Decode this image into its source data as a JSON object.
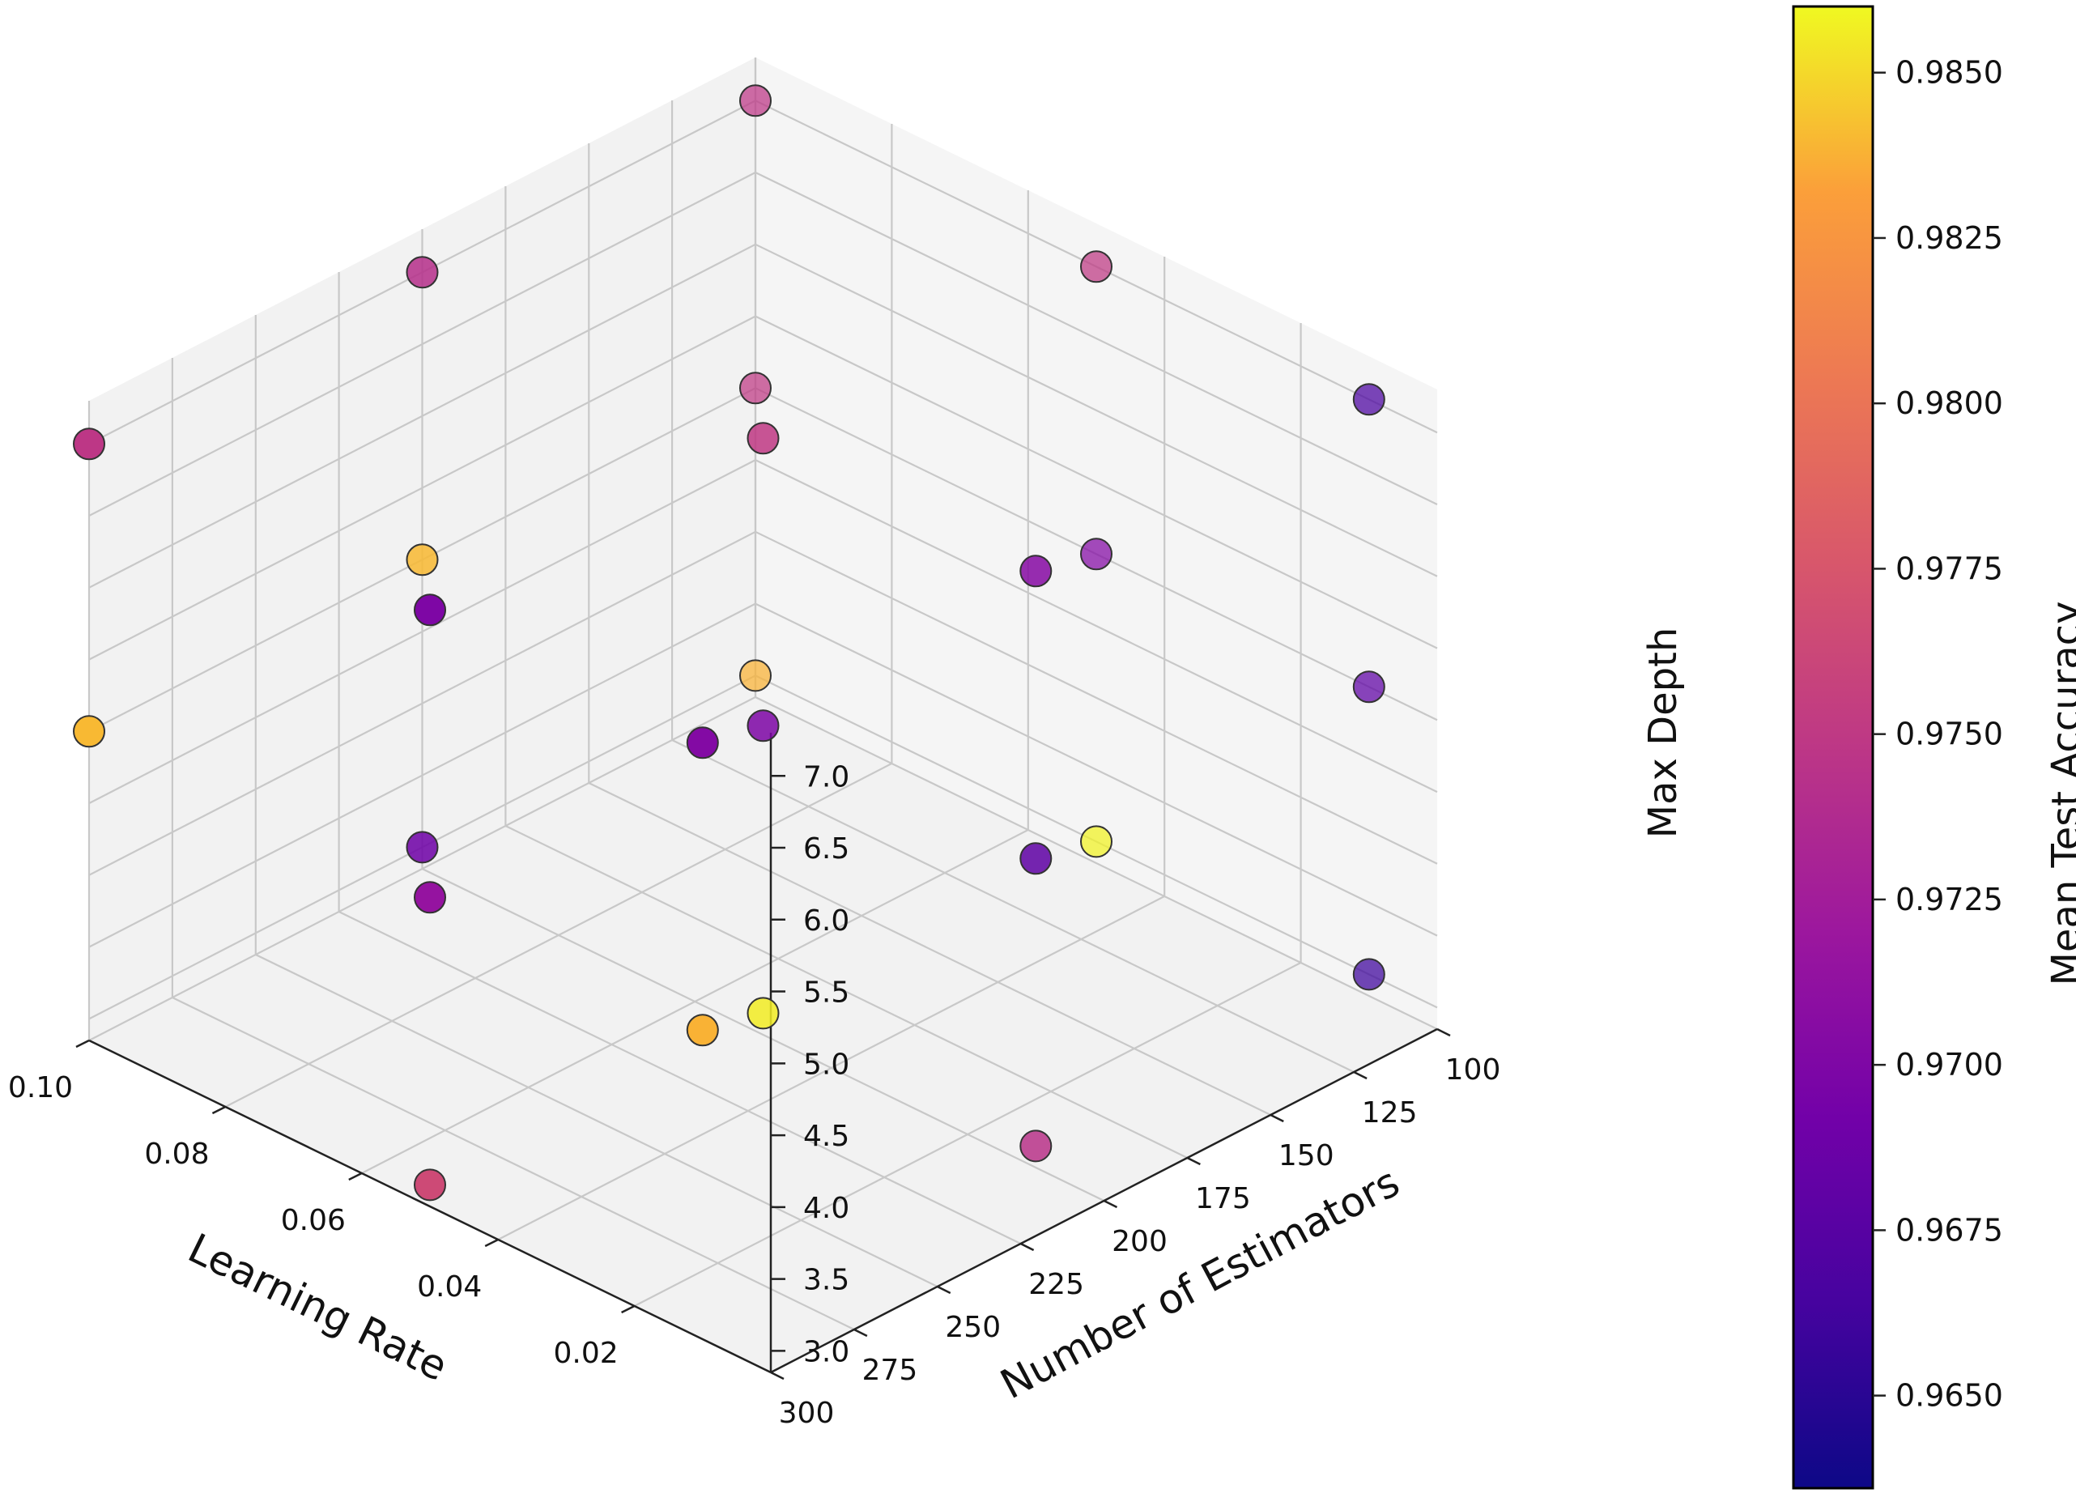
{
  "chart_data": {
    "type": "scatter3d",
    "x": {
      "label": "Learning Rate",
      "ticks": [
        0.1,
        0.08,
        0.06,
        0.04,
        0.02
      ],
      "tick_labels": [
        "0.10",
        "0.08",
        "0.06",
        "0.04",
        "0.02"
      ]
    },
    "y": {
      "label": "Number of Estimators",
      "ticks": [
        100,
        125,
        150,
        175,
        200,
        225,
        250,
        275,
        300
      ],
      "tick_labels": [
        "100",
        "125",
        "150",
        "175",
        "200",
        "225",
        "250",
        "275",
        "300"
      ]
    },
    "z": {
      "label": "Max Depth",
      "ticks": [
        3.0,
        3.5,
        4.0,
        4.5,
        5.0,
        5.5,
        6.0,
        6.5,
        7.0
      ],
      "tick_labels": [
        "3.0",
        "3.5",
        "4.0",
        "4.5",
        "5.0",
        "5.5",
        "6.0",
        "6.5",
        "7.0"
      ]
    },
    "colorbar": {
      "label": "Mean Test Accuracy",
      "colormap": "plasma",
      "range": [
        0.9636,
        0.986
      ],
      "ticks": [
        0.965,
        0.9675,
        0.97,
        0.9725,
        0.975,
        0.9775,
        0.98,
        0.9825,
        0.985
      ],
      "tick_labels": [
        "0.9650",
        "0.9675",
        "0.9700",
        "0.9725",
        "0.9750",
        "0.9775",
        "0.9800",
        "0.9825",
        "0.9850"
      ]
    },
    "points": [
      {
        "lr": 0.1,
        "n": 100,
        "depth": 7,
        "acc": 0.9748
      },
      {
        "lr": 0.05,
        "n": 100,
        "depth": 7,
        "acc": 0.975
      },
      {
        "lr": 0.01,
        "n": 100,
        "depth": 7,
        "acc": 0.9668
      },
      {
        "lr": 0.1,
        "n": 200,
        "depth": 7,
        "acc": 0.9742
      },
      {
        "lr": 0.05,
        "n": 200,
        "depth": 7,
        "acc": 0.975
      },
      {
        "lr": 0.01,
        "n": 200,
        "depth": 7,
        "acc": 0.9705
      },
      {
        "lr": 0.1,
        "n": 300,
        "depth": 7,
        "acc": 0.9748
      },
      {
        "lr": 0.05,
        "n": 300,
        "depth": 7,
        "acc": 0.97
      },
      {
        "lr": 0.01,
        "n": 300,
        "depth": 7,
        "acc": 0.9703
      },
      {
        "lr": 0.1,
        "n": 100,
        "depth": 5,
        "acc": 0.975
      },
      {
        "lr": 0.05,
        "n": 100,
        "depth": 5,
        "acc": 0.9703
      },
      {
        "lr": 0.01,
        "n": 100,
        "depth": 5,
        "acc": 0.968
      },
      {
        "lr": 0.1,
        "n": 200,
        "depth": 5,
        "acc": 0.984
      },
      {
        "lr": 0.05,
        "n": 200,
        "depth": 5,
        "acc": 0.97
      },
      {
        "lr": 0.01,
        "n": 200,
        "depth": 5,
        "acc": 0.968
      },
      {
        "lr": 0.1,
        "n": 300,
        "depth": 5,
        "acc": 0.984
      },
      {
        "lr": 0.05,
        "n": 300,
        "depth": 5,
        "acc": 0.9715
      },
      {
        "lr": 0.01,
        "n": 300,
        "depth": 5,
        "acc": 0.9838
      },
      {
        "lr": 0.1,
        "n": 100,
        "depth": 3,
        "acc": 0.9838
      },
      {
        "lr": 0.05,
        "n": 100,
        "depth": 3,
        "acc": 0.9858
      },
      {
        "lr": 0.01,
        "n": 100,
        "depth": 3,
        "acc": 0.966
      },
      {
        "lr": 0.1,
        "n": 200,
        "depth": 3,
        "acc": 0.969
      },
      {
        "lr": 0.05,
        "n": 200,
        "depth": 3,
        "acc": 0.9856
      },
      {
        "lr": 0.01,
        "n": 200,
        "depth": 3,
        "acc": 0.9745
      },
      {
        "lr": 0.05,
        "n": 300,
        "depth": 3,
        "acc": 0.9765
      }
    ]
  }
}
